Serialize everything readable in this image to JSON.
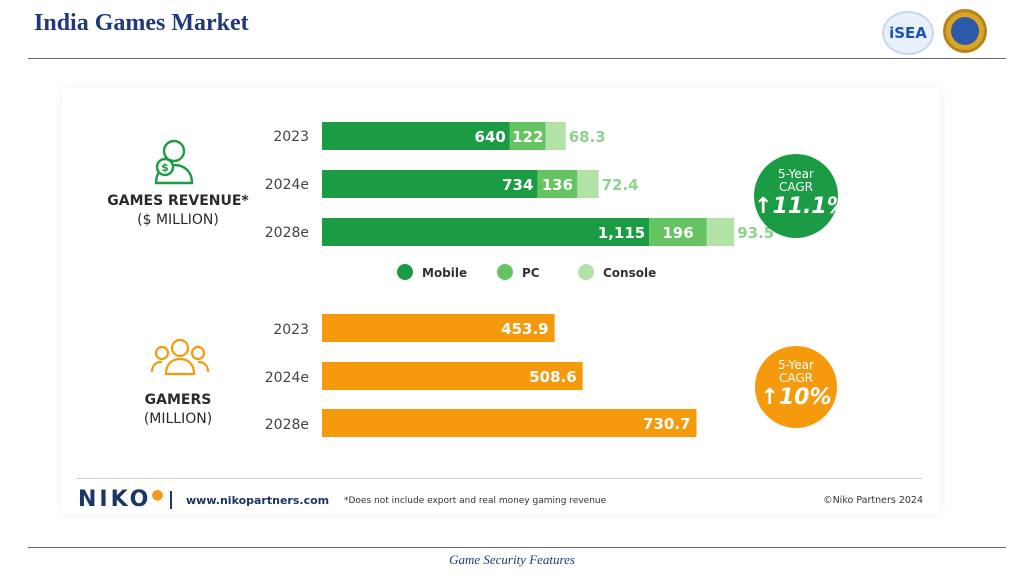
{
  "slide": {
    "title": "India Games Market",
    "footer": "Game Security Features"
  },
  "logos": {
    "isea_text": "iSEA"
  },
  "revenue_label": {
    "main": "GAMES REVENUE*",
    "sub": "($ MILLION)"
  },
  "gamers_label": {
    "main": "GAMERS",
    "sub": "(MILLION)"
  },
  "cagr": [
    {
      "line1": "5-Year",
      "line2": "CAGR",
      "value": "11.1%",
      "color": "#1a9b44"
    },
    {
      "line1": "5-Year",
      "line2": "CAGR",
      "value": "10%",
      "color": "#f59a0c"
    }
  ],
  "footer": {
    "brand": "NIKO",
    "url": "www.nikopartners.com",
    "note": "*Does not include export and real money gaming revenue",
    "copyright": "©Niko Partners 2024"
  },
  "chart_data": [
    {
      "type": "bar",
      "stacked": true,
      "orientation": "horizontal",
      "categories": [
        "2023",
        "2024e",
        "2028e"
      ],
      "series": [
        {
          "name": "Mobile",
          "values": [
            640,
            734,
            1115
          ],
          "labels": [
            "640",
            "734",
            "1,115"
          ],
          "color": "#1a9b44"
        },
        {
          "name": "PC",
          "values": [
            122,
            136,
            196
          ],
          "labels": [
            "122",
            "136",
            "196"
          ],
          "color": "#63c460"
        },
        {
          "name": "Console",
          "values": [
            68.3,
            72.4,
            93.5
          ],
          "labels": [
            "68.3",
            "72.4",
            "93.5"
          ],
          "color": "#b2e2a8"
        }
      ],
      "legend_position": "bottom"
    },
    {
      "type": "bar",
      "orientation": "horizontal",
      "categories": [
        "2023",
        "2024e",
        "2028e"
      ],
      "values": [
        453.9,
        508.6,
        730.7
      ],
      "labels": [
        "453.9",
        "508.6",
        "730.7"
      ],
      "color": "#f59a0c"
    }
  ]
}
